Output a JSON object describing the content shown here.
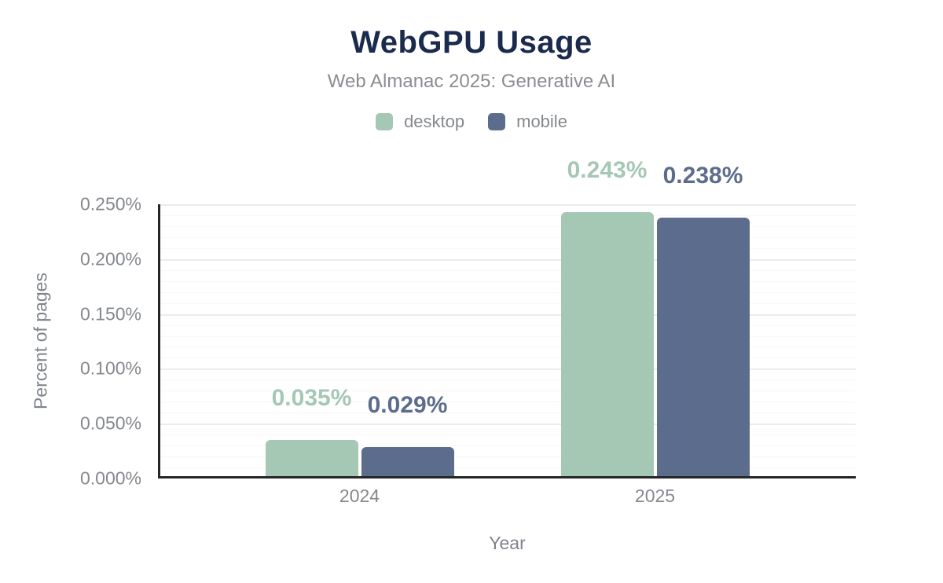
{
  "header": {
    "title": "WebGPU Usage",
    "subtitle": "Web Almanac 2025: Generative AI"
  },
  "colors": {
    "title": "#1b2b4e",
    "subtitle": "#8a8d92",
    "tick_text": "#85888d",
    "axis_title_text": "#7e838a",
    "axis_line": "#262626",
    "grid_major": "#ececec",
    "grid_minor": "#f7f7f7",
    "desktop": "#a5c8b5",
    "mobile": "#5c6c8c"
  },
  "legend": {
    "items": [
      {
        "label": "desktop",
        "color": "#a5c8b5"
      },
      {
        "label": "mobile",
        "color": "#5c6c8c"
      }
    ]
  },
  "chart_data": {
    "type": "bar",
    "title": "WebGPU Usage",
    "subtitle": "Web Almanac 2025: Generative AI",
    "categories": [
      "2024",
      "2025"
    ],
    "series": [
      {
        "name": "desktop",
        "color": "#a5c8b5",
        "values": [
          0.035,
          0.243
        ],
        "labels": [
          "0.035%",
          "0.243%"
        ]
      },
      {
        "name": "mobile",
        "color": "#5c6c8c",
        "values": [
          0.029,
          0.238
        ],
        "labels": [
          "0.029%",
          "0.238%"
        ]
      }
    ],
    "xlabel": "Year",
    "ylabel": "Percent of pages",
    "ylim": [
      0,
      0.25
    ],
    "ytick_values": [
      0,
      0.05,
      0.1,
      0.15,
      0.2,
      0.25
    ],
    "ytick_labels": [
      "0.000%",
      "0.050%",
      "0.100%",
      "0.150%",
      "0.200%",
      "0.250%"
    ],
    "grid": "horizontal; major every 0.050%, minor every 0.010%",
    "legend_position": "top-center"
  }
}
